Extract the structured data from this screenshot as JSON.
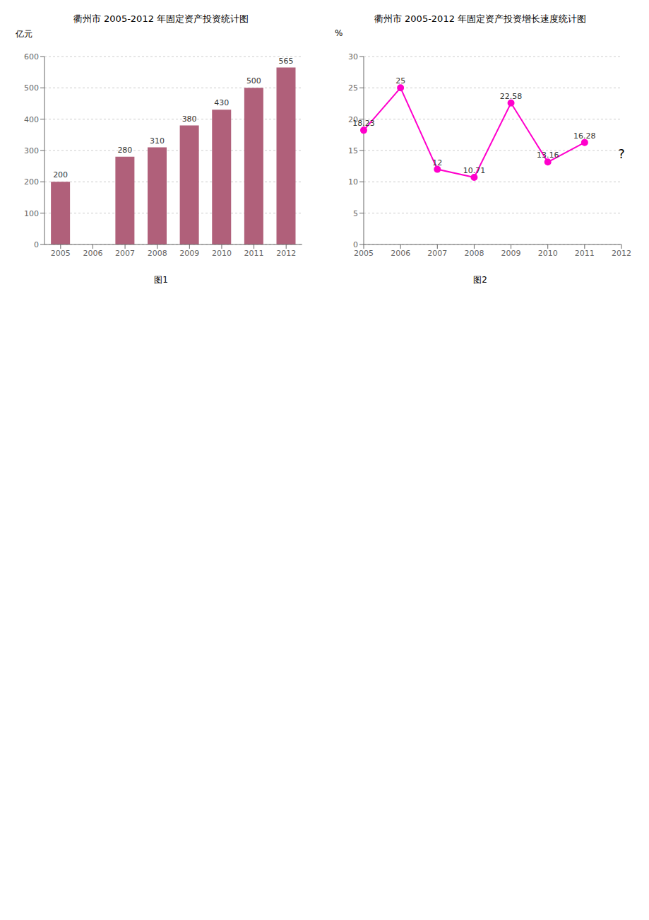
{
  "chart_data": [
    {
      "type": "bar",
      "title": "衢州市 2005-2012 年固定资产投资统计图",
      "subtitle": "图1",
      "ylabel": "亿元",
      "categories": [
        "2005",
        "2006",
        "2007",
        "2008",
        "2009",
        "2010",
        "2011",
        "2012"
      ],
      "values": [
        200,
        null,
        280,
        310,
        380,
        430,
        500,
        565
      ],
      "color": "#b0607a",
      "ylim": [
        0,
        600
      ],
      "yticks": [
        0,
        100,
        200,
        300,
        400,
        500,
        600
      ],
      "grid": true,
      "data_labels": true
    },
    {
      "type": "line",
      "title": "衢州市 2005-2012 年固定资产投资增长速度统计图",
      "subtitle": "图2",
      "ylabel": "%",
      "categories": [
        "2005",
        "2006",
        "2007",
        "2008",
        "2009",
        "2010",
        "2011",
        "2012"
      ],
      "values": [
        18.23,
        25,
        12,
        10.71,
        22.58,
        13.16,
        16.28,
        null
      ],
      "color": "#ff00cc",
      "marker": "circle",
      "ylim": [
        0,
        30
      ],
      "yticks": [
        0,
        5,
        10,
        15,
        20,
        25,
        30
      ],
      "grid": true,
      "data_labels": true,
      "annotations": [
        {
          "text": "?",
          "x": "2012",
          "y": 14.5
        }
      ]
    }
  ]
}
